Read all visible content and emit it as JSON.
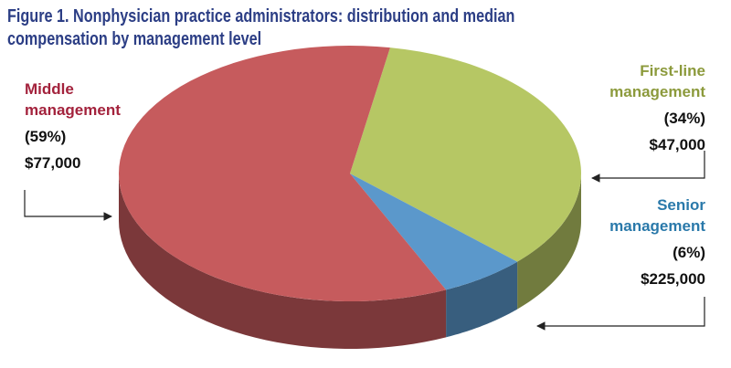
{
  "chart_data": {
    "type": "pie",
    "title": "Figure 1. Nonphysician practice administrators: distribution and median compensation by management level",
    "categories": [
      "Middle management",
      "First-line management",
      "Senior management"
    ],
    "values": [
      59,
      34,
      6
    ],
    "value_labels": [
      "(59%)",
      "(34%)",
      "(6%)"
    ],
    "compensation": [
      "$77,000",
      "$47,000",
      "$225,000"
    ],
    "colors": [
      "#c65b5d",
      "#b6c764",
      "#5b98cb"
    ],
    "three_d": true
  }
}
